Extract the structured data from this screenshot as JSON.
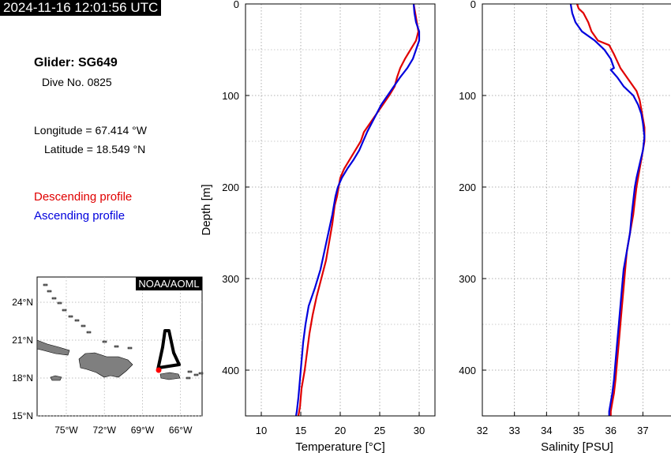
{
  "header": {
    "timestamp": "2024-11-16 12:01:56 UTC"
  },
  "info": {
    "glider": "Glider: SG649",
    "dive": "Dive No. 0825",
    "longitude": "Longitude = 67.414 °W",
    "latitude": "Latitude = 18.549 °N"
  },
  "legend": {
    "descending": "Descending profile",
    "ascending": "Ascending profile",
    "descending_color": "#e00000",
    "ascending_color": "#0000dd"
  },
  "map": {
    "credit": "NOAA/AOML",
    "lon_ticks": [
      "75°W",
      "72°W",
      "69°W",
      "66°W"
    ],
    "lat_ticks": [
      "24°N",
      "21°N",
      "18°N",
      "15°N"
    ],
    "land_color": "#7f7f7f"
  },
  "chart_data": [
    {
      "type": "line",
      "xlabel": "Temperature [°C]",
      "ylabel": "Depth [m]",
      "xlim": [
        8,
        32
      ],
      "ylim": [
        450,
        0
      ],
      "xticks": [
        10,
        15,
        20,
        25,
        30
      ],
      "yticks": [
        0,
        100,
        200,
        300,
        400
      ],
      "grid": true,
      "series": [
        {
          "color": "#e00000",
          "x": [
            29.3,
            29.5,
            29.7,
            29.9,
            29.6,
            28.9,
            28.2,
            27.6,
            27.2,
            26.9,
            26.2,
            25.4,
            24.6,
            23.8,
            23.0,
            22.6,
            21.9,
            21.2,
            20.5,
            20.0,
            19.8,
            19.6,
            19.3,
            19.0,
            18.6,
            18.2,
            17.6,
            17.0,
            16.5,
            16.1,
            15.8,
            15.5,
            15.3,
            15.1,
            15.0,
            14.9,
            14.8,
            14.7
          ],
          "y": [
            0,
            10,
            20,
            30,
            40,
            50,
            60,
            70,
            80,
            90,
            100,
            110,
            120,
            130,
            140,
            150,
            160,
            170,
            180,
            190,
            200,
            210,
            220,
            240,
            260,
            280,
            300,
            320,
            340,
            360,
            380,
            400,
            410,
            420,
            430,
            440,
            445,
            450
          ]
        },
        {
          "color": "#0000dd",
          "x": [
            29.3,
            29.4,
            29.6,
            30.0,
            30.0,
            29.6,
            29.2,
            28.5,
            27.6,
            26.8,
            26.0,
            25.2,
            24.6,
            24.0,
            23.4,
            22.9,
            22.4,
            21.7,
            20.9,
            20.2,
            19.7,
            19.4,
            19.0,
            18.5,
            18.0,
            17.5,
            16.8,
            16.0,
            15.6,
            15.3,
            15.1,
            14.9,
            14.7,
            14.5,
            14.4
          ],
          "y": [
            0,
            10,
            20,
            30,
            40,
            50,
            60,
            70,
            80,
            90,
            100,
            110,
            120,
            130,
            140,
            150,
            160,
            170,
            180,
            190,
            200,
            210,
            230,
            250,
            270,
            290,
            310,
            330,
            350,
            370,
            390,
            410,
            430,
            445,
            450
          ]
        }
      ]
    },
    {
      "type": "line",
      "xlabel": "Salinity [PSU]",
      "ylabel": "",
      "xlim": [
        32,
        37.9
      ],
      "ylim": [
        450,
        0
      ],
      "xticks": [
        32,
        33,
        34,
        35,
        36,
        37
      ],
      "yticks": [
        0,
        100,
        200,
        300,
        400
      ],
      "grid": true,
      "series": [
        {
          "color": "#e00000",
          "x": [
            34.95,
            35.0,
            35.15,
            35.3,
            35.4,
            35.6,
            35.95,
            36.1,
            36.3,
            36.6,
            36.8,
            36.9,
            36.95,
            37.0,
            37.05,
            37.05,
            37.0,
            36.95,
            36.9,
            36.85,
            36.8,
            36.75,
            36.7,
            36.6,
            36.5,
            36.45,
            36.4,
            36.35,
            36.3,
            36.25,
            36.2,
            36.15,
            36.1,
            36.05,
            36.0,
            36.0
          ],
          "y": [
            0,
            5,
            10,
            20,
            30,
            40,
            45,
            55,
            70,
            85,
            95,
            105,
            115,
            125,
            135,
            150,
            160,
            170,
            180,
            190,
            200,
            215,
            230,
            250,
            270,
            290,
            310,
            330,
            350,
            370,
            390,
            410,
            425,
            435,
            445,
            450
          ]
        },
        {
          "color": "#0000dd",
          "x": [
            34.75,
            34.8,
            34.9,
            35.1,
            35.5,
            35.8,
            36.0,
            36.1,
            36.0,
            36.2,
            36.4,
            36.7,
            36.85,
            36.95,
            37.0,
            37.05,
            37.0,
            36.9,
            36.8,
            36.75,
            36.7,
            36.65,
            36.6,
            36.5,
            36.4,
            36.35,
            36.3,
            36.25,
            36.2,
            36.15,
            36.1,
            36.05,
            36.0,
            35.95,
            35.95
          ],
          "y": [
            0,
            10,
            20,
            30,
            40,
            50,
            60,
            70,
            72,
            80,
            90,
            100,
            110,
            120,
            130,
            145,
            160,
            175,
            190,
            200,
            215,
            230,
            250,
            270,
            290,
            310,
            330,
            350,
            370,
            390,
            410,
            425,
            435,
            445,
            450
          ]
        }
      ]
    }
  ]
}
